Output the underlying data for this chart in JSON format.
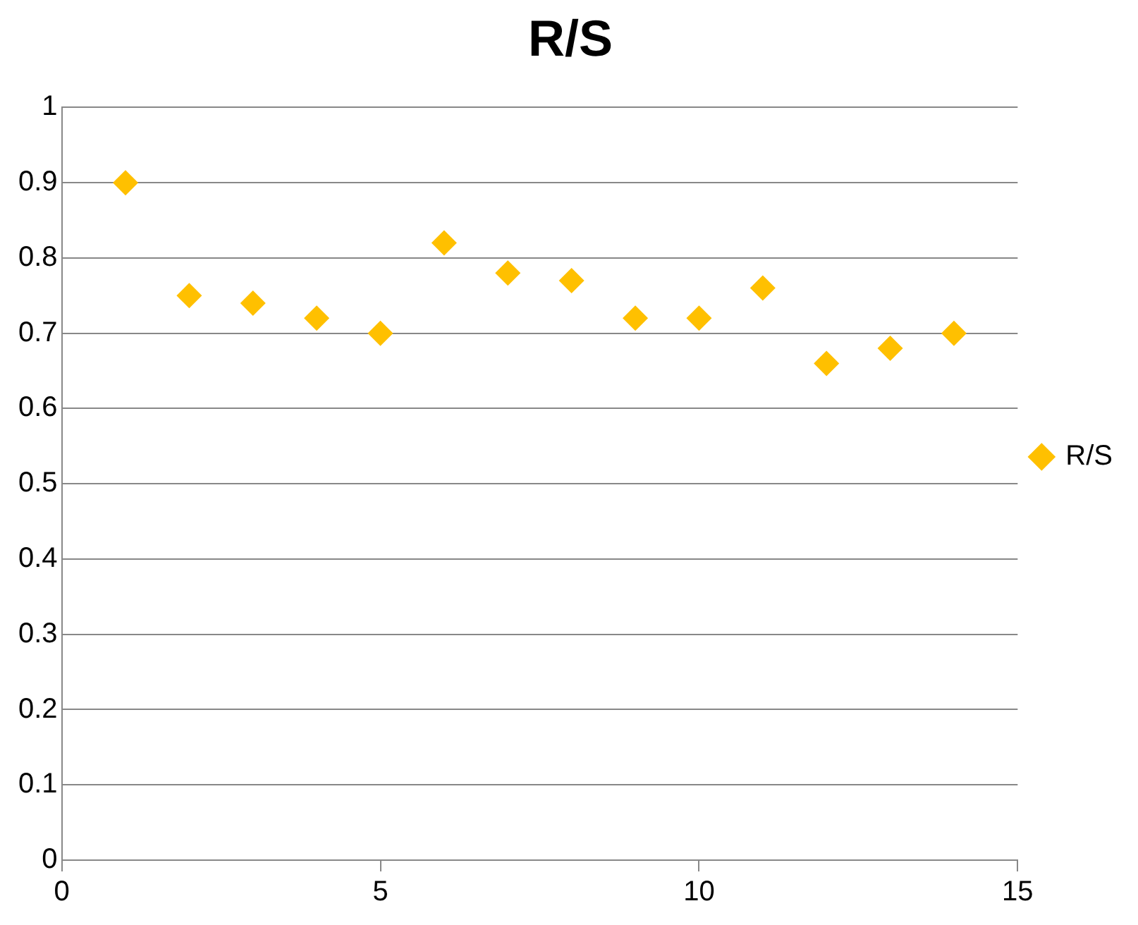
{
  "chart_data": {
    "type": "scatter",
    "title": "R/S",
    "x": [
      1,
      2,
      3,
      4,
      5,
      6,
      7,
      8,
      9,
      10,
      11,
      12,
      13,
      14
    ],
    "series": [
      {
        "name": "R/S",
        "color": "#ffc000",
        "values": [
          0.9,
          0.75,
          0.74,
          0.72,
          0.7,
          0.82,
          0.78,
          0.77,
          0.72,
          0.72,
          0.76,
          0.66,
          0.68,
          0.7
        ]
      }
    ],
    "xlim": [
      0,
      15
    ],
    "xticks": [
      0,
      5,
      10,
      15
    ],
    "ylim": [
      0,
      1
    ],
    "yticks": [
      0,
      0.1,
      0.2,
      0.3,
      0.4,
      0.5,
      0.6,
      0.7,
      0.8,
      0.9,
      1
    ],
    "grid": "y",
    "legend": "right",
    "marker": "diamond"
  }
}
